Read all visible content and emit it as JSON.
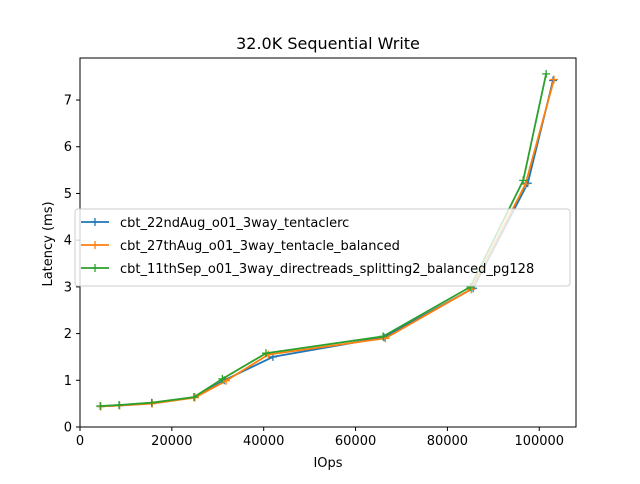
{
  "chart_data": {
    "type": "line",
    "title": "32.0K  Sequential Write",
    "xlabel": "IOps",
    "ylabel": "Latency (ms)",
    "xlim": [
      0,
      108000
    ],
    "ylim": [
      0,
      7.9
    ],
    "xticks": [
      0,
      20000,
      40000,
      60000,
      80000,
      100000
    ],
    "xtick_labels": [
      "0",
      "20000",
      "40000",
      "60000",
      "80000",
      "100000"
    ],
    "yticks": [
      0,
      1,
      2,
      3,
      4,
      5,
      6,
      7
    ],
    "ytick_labels": [
      "0",
      "1",
      "2",
      "3",
      "4",
      "5",
      "6",
      "7"
    ],
    "grid": false,
    "legend_position": "center-left",
    "marker": "plus",
    "series": [
      {
        "name": "cbt_22ndAug_o01_3way_tentaclerc",
        "color": "#1f77b4",
        "x": [
          4500,
          8600,
          15700,
          25000,
          31400,
          42000,
          66200,
          85600,
          97500,
          103000
        ],
        "y": [
          0.44,
          0.46,
          0.51,
          0.64,
          1.0,
          1.5,
          1.92,
          2.97,
          5.22,
          7.42
        ]
      },
      {
        "name": "cbt_27thAug_o01_3way_tentacle_balanced",
        "color": "#ff7f0e",
        "x": [
          4500,
          8600,
          15700,
          25000,
          31800,
          41000,
          66500,
          85200,
          97000,
          103200
        ],
        "y": [
          0.44,
          0.46,
          0.5,
          0.63,
          0.99,
          1.55,
          1.9,
          2.95,
          5.2,
          7.44
        ]
      },
      {
        "name": "cbt_11thSep_o01_3way_directreads_splitting2_balanced_pg128",
        "color": "#2ca02c",
        "x": [
          4400,
          8500,
          15600,
          24800,
          31000,
          40500,
          66000,
          85000,
          96500,
          101500
        ],
        "y": [
          0.45,
          0.47,
          0.52,
          0.64,
          1.03,
          1.58,
          1.94,
          3.0,
          5.28,
          7.56
        ]
      }
    ]
  }
}
